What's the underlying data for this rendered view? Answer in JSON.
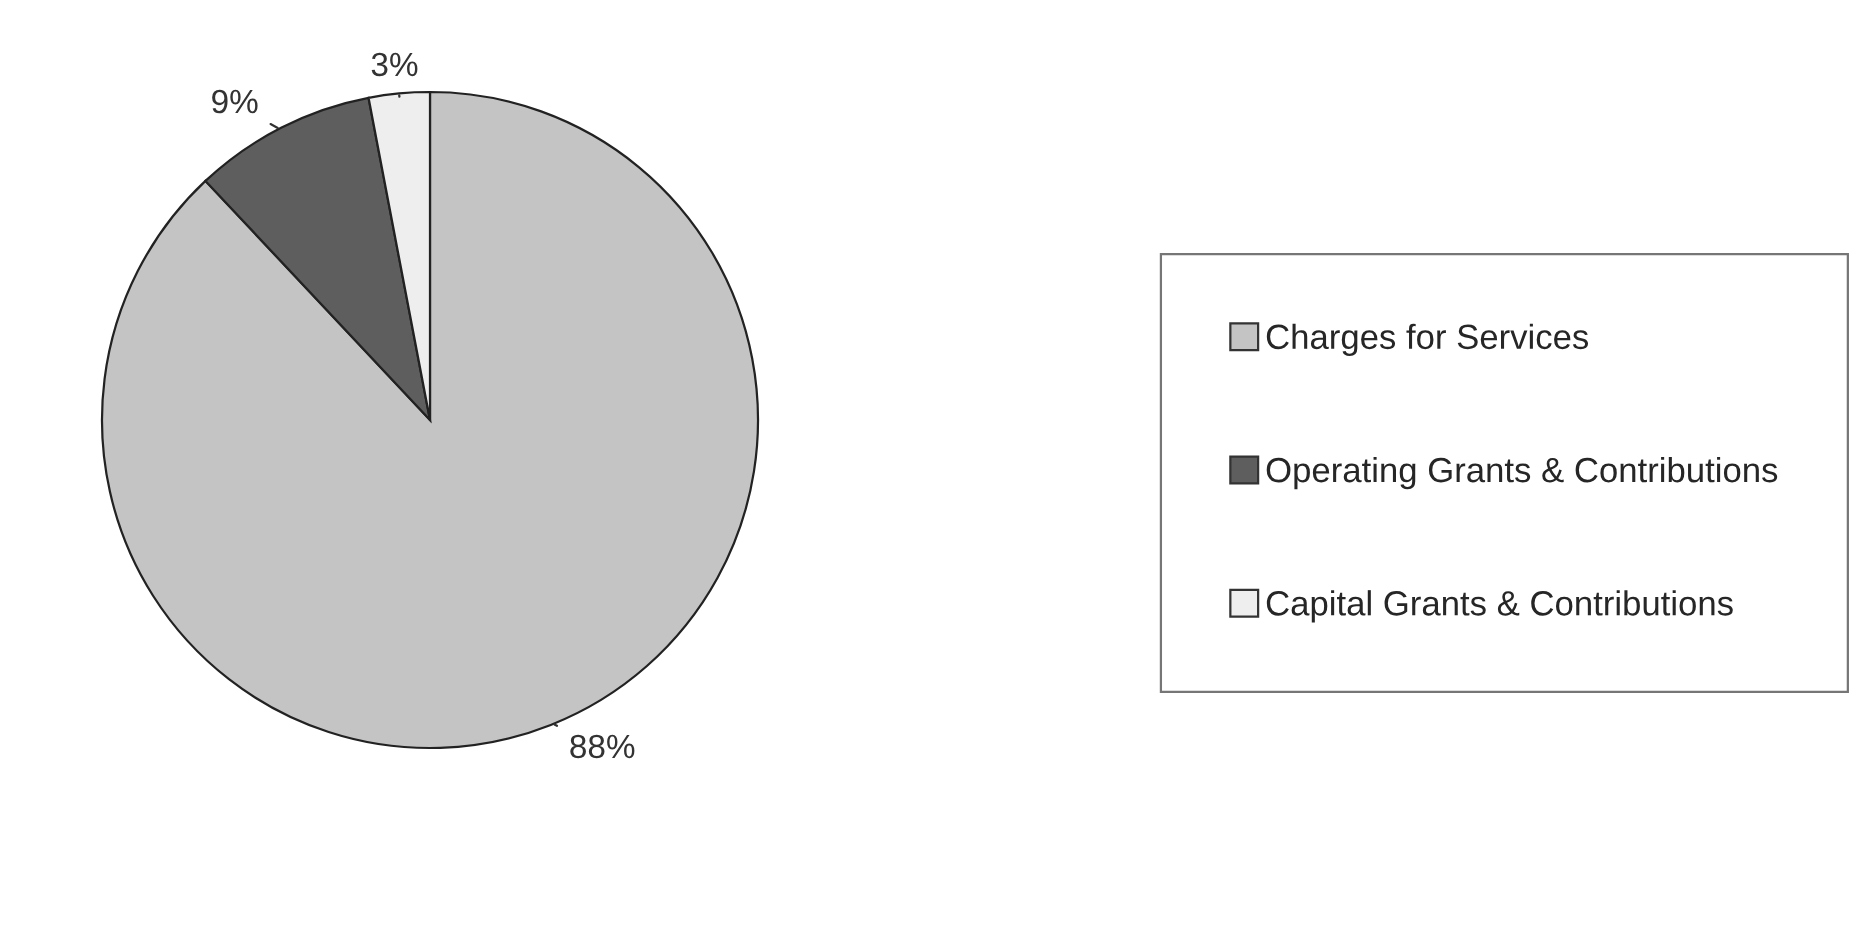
{
  "chart_data": {
    "type": "pie",
    "categories": [
      "Charges for Services",
      "Operating Grants & Contributions",
      "Capital Grants & Contributions"
    ],
    "values": [
      88,
      9,
      3
    ],
    "colors": [
      "#c4c4c4",
      "#5e5e5e",
      "#eeeeee"
    ],
    "value_labels": [
      "88%",
      "9%",
      "3%"
    ],
    "legend": "right"
  }
}
